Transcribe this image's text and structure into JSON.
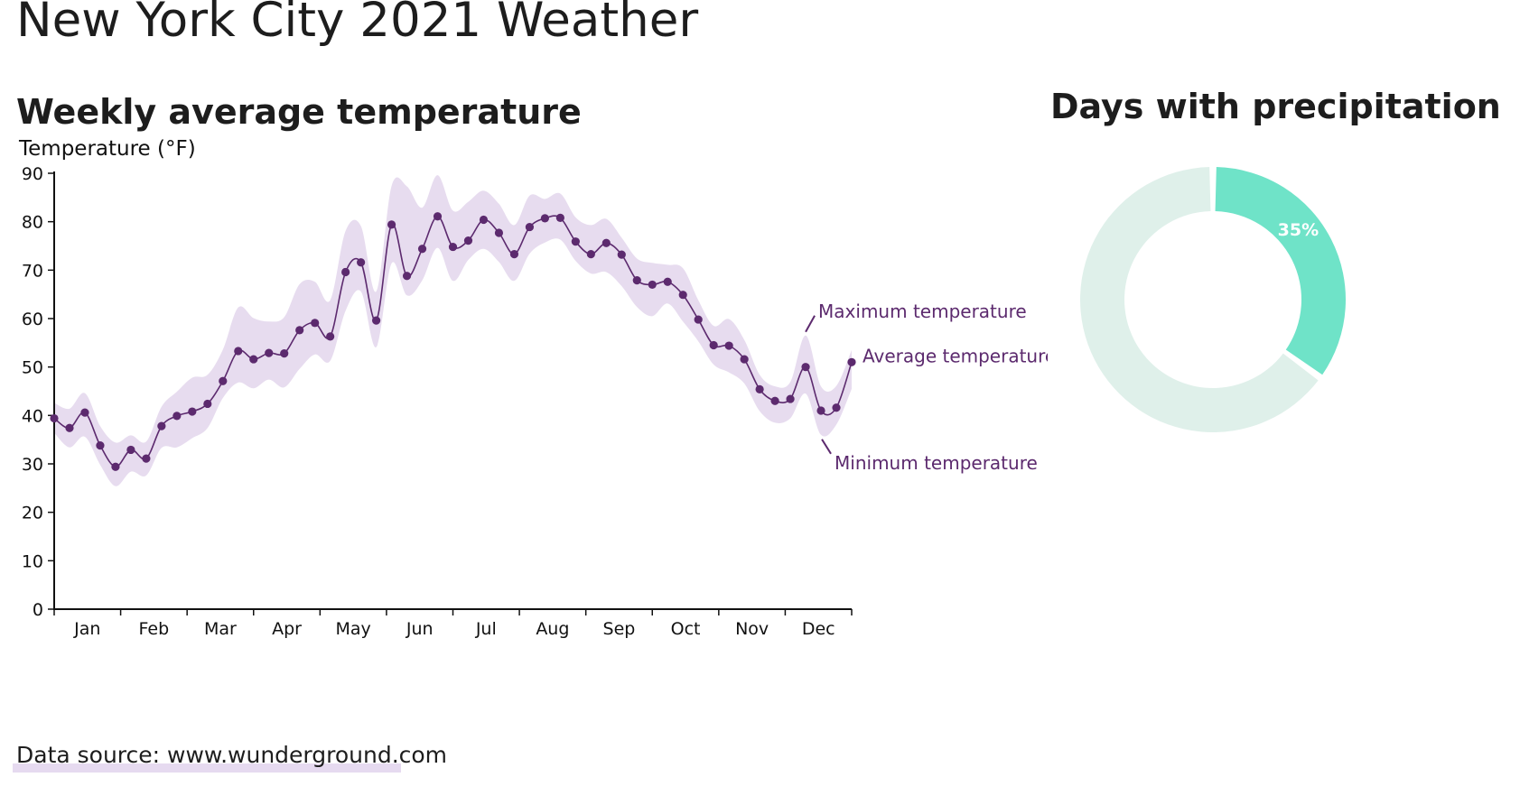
{
  "page": {
    "title": "New York City 2021 Weather",
    "source": "Data source: www.wunderground.com"
  },
  "colors": {
    "band": "#e7dcef",
    "line": "#5c2a6e",
    "donut_highlight": "#6fe3c8",
    "donut_rest": "#dff0ea"
  },
  "chart_data": [
    {
      "type": "line",
      "title": "Weekly average temperature",
      "ylabel": "Temperature (°F)",
      "xlabel": "",
      "ylim": [
        0,
        90
      ],
      "yticks": [
        0,
        10,
        20,
        30,
        40,
        50,
        60,
        70,
        80,
        90
      ],
      "months": [
        "Jan",
        "Feb",
        "Mar",
        "Apr",
        "May",
        "Jun",
        "Jul",
        "Aug",
        "Sep",
        "Oct",
        "Nov",
        "Dec"
      ],
      "x_unit": "week",
      "grid": false,
      "series": [
        {
          "name": "Average temperature",
          "values": [
            39.4,
            37.4,
            40.6,
            33.8,
            29.4,
            32.9,
            31.1,
            37.8,
            39.9,
            40.8,
            42.4,
            47.1,
            53.3,
            51.6,
            52.9,
            52.8,
            57.6,
            59.1,
            56.3,
            69.6,
            71.6,
            59.6,
            79.4,
            68.8,
            74.4,
            81.1,
            74.8,
            76.1,
            80.4,
            77.7,
            73.3,
            78.9,
            80.7,
            80.8,
            75.9,
            73.3,
            75.6,
            73.2,
            67.9,
            67.0,
            67.6,
            64.9,
            59.8,
            54.5,
            54.4,
            51.6,
            45.4,
            43.0,
            43.4,
            50.0,
            41.0,
            41.6,
            51.0
          ]
        },
        {
          "name": "Maximum temperature",
          "values": [
            42.6,
            41.4,
            44.6,
            37.8,
            34.4,
            35.9,
            34.6,
            41.8,
            44.9,
            47.8,
            48.4,
            53.6,
            62.3,
            60.1,
            59.4,
            60.3,
            67.1,
            67.6,
            63.8,
            78.1,
            79.1,
            65.6,
            87.4,
            87.3,
            82.9,
            89.6,
            82.3,
            84.1,
            86.4,
            83.7,
            79.3,
            85.4,
            84.7,
            85.8,
            80.9,
            79.3,
            80.6,
            76.7,
            72.4,
            71.5,
            71.1,
            70.4,
            63.8,
            58.5,
            59.9,
            55.6,
            48.4,
            46.0,
            46.9,
            56.5,
            46.0,
            46.1,
            53.5
          ]
        },
        {
          "name": "Minimum temperature",
          "values": [
            36.4,
            33.4,
            35.6,
            29.8,
            25.4,
            28.4,
            27.6,
            33.3,
            33.4,
            35.3,
            37.4,
            43.6,
            46.8,
            45.6,
            47.4,
            45.8,
            49.6,
            52.6,
            51.3,
            61.6,
            65.6,
            54.1,
            71.4,
            64.8,
            67.9,
            74.6,
            67.8,
            72.1,
            74.4,
            71.7,
            67.8,
            73.4,
            75.7,
            76.3,
            71.9,
            69.3,
            69.6,
            66.7,
            62.4,
            60.5,
            63.1,
            59.4,
            55.3,
            50.5,
            48.9,
            46.6,
            40.9,
            38.5,
            39.4,
            44.5,
            36.0,
            38.1,
            45.5
          ]
        }
      ],
      "annotations": [
        "Maximum temperature",
        "Average temperature",
        "Minimum temperature"
      ]
    },
    {
      "type": "pie",
      "title": "Days with precipitation",
      "donut": true,
      "values": [
        35,
        65
      ],
      "labels": [
        "35%",
        ""
      ]
    }
  ]
}
